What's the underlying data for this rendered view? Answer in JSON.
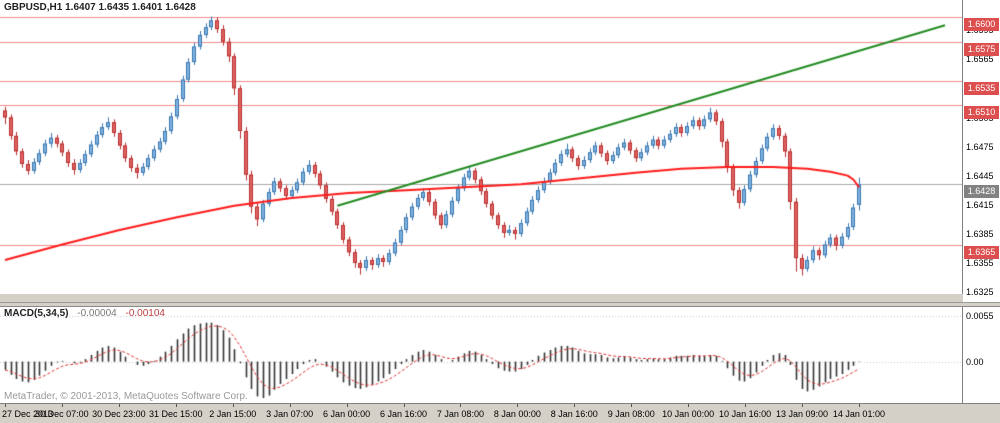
{
  "app": {
    "name": "MetaTrader terminal chart"
  },
  "header": {
    "title_line": "GBPUSD,H1  1.6407 1.6435 1.6401 1.6428"
  },
  "watermark": "MetaTrader, © 2001-2013, MetaQuotes Software Corp.",
  "colors": {
    "bull_fill": "#7fb2de",
    "bull_stroke": "#3a77b0",
    "bear_fill": "#e06262",
    "bear_stroke": "#b83030",
    "ma": "#ff1a1a",
    "trend": "#228B22",
    "hline": "#f28b8b",
    "hline_label_bg": "#dd4f4f",
    "current_line": "#aaaaaa",
    "current_label_bg": "#828282",
    "hist": "#333333",
    "signal": "#dd3333",
    "grid_dotted": "#c8c8c8"
  },
  "chart_data": [
    {
      "type": "candlestick",
      "title": "GBPUSD,H1",
      "symbol": "GBPUSD",
      "timeframe": "H1",
      "ohlc_display": {
        "open": "1.6407",
        "high": "1.6435",
        "low": "1.6401",
        "close": "1.6428"
      },
      "ylim": [
        1.6315,
        1.6618
      ],
      "y_ticks": [
        1.6595,
        1.6565,
        1.6505,
        1.6475,
        1.6445,
        1.6415,
        1.6385,
        1.6355,
        1.6325
      ],
      "hlines": [
        1.66,
        1.6575,
        1.6535,
        1.651,
        1.6365
      ],
      "current_price": 1.6428,
      "x_ticks": [
        "27 Dec 2013",
        "30 Dec 07:00",
        "30 Dec 23:00",
        "31 Dec 15:00",
        "2 Jan 15:00",
        "3 Jan 07:00",
        "6 Jan 00:00",
        "6 Jan 16:00",
        "7 Jan 08:00",
        "8 Jan 00:00",
        "8 Jan 16:00",
        "9 Jan 08:00",
        "10 Jan 00:00",
        "10 Jan 16:00",
        "13 Jan 09:00",
        "14 Jan 01:00"
      ],
      "candles": [
        [
          1.6504,
          1.6508,
          1.649,
          1.6497
        ],
        [
          1.6497,
          1.65,
          1.6474,
          1.6478
        ],
        [
          1.6478,
          1.6482,
          1.6458,
          1.6462
        ],
        [
          1.6462,
          1.6465,
          1.6445,
          1.6449
        ],
        [
          1.6449,
          1.6453,
          1.6438,
          1.6442
        ],
        [
          1.6442,
          1.6455,
          1.6439,
          1.6451
        ],
        [
          1.6451,
          1.6464,
          1.6448,
          1.646
        ],
        [
          1.646,
          1.6474,
          1.6457,
          1.647
        ],
        [
          1.647,
          1.6481,
          1.6466,
          1.6476
        ],
        [
          1.6476,
          1.6479,
          1.6466,
          1.647
        ],
        [
          1.647,
          1.6473,
          1.6457,
          1.6461
        ],
        [
          1.6461,
          1.6464,
          1.6446,
          1.645
        ],
        [
          1.645,
          1.6454,
          1.6438,
          1.6443
        ],
        [
          1.6443,
          1.6454,
          1.644,
          1.645
        ],
        [
          1.645,
          1.6463,
          1.6447,
          1.6459
        ],
        [
          1.6459,
          1.6473,
          1.6456,
          1.6469
        ],
        [
          1.6469,
          1.6483,
          1.6466,
          1.6479
        ],
        [
          1.6479,
          1.6491,
          1.6476,
          1.6487
        ],
        [
          1.6487,
          1.6497,
          1.6484,
          1.6492
        ],
        [
          1.6492,
          1.6495,
          1.6477,
          1.6481
        ],
        [
          1.6481,
          1.6484,
          1.6464,
          1.6468
        ],
        [
          1.6468,
          1.6471,
          1.6451,
          1.6455
        ],
        [
          1.6455,
          1.6458,
          1.6441,
          1.6445
        ],
        [
          1.6445,
          1.6449,
          1.6434,
          1.644
        ],
        [
          1.644,
          1.645,
          1.6437,
          1.6446
        ],
        [
          1.6446,
          1.6459,
          1.6443,
          1.6455
        ],
        [
          1.6455,
          1.6468,
          1.6452,
          1.6464
        ],
        [
          1.6464,
          1.6476,
          1.6461,
          1.6472
        ],
        [
          1.6472,
          1.6487,
          1.6469,
          1.6483
        ],
        [
          1.6483,
          1.6502,
          1.648,
          1.6498
        ],
        [
          1.6498,
          1.652,
          1.6495,
          1.6516
        ],
        [
          1.6516,
          1.654,
          1.6513,
          1.6536
        ],
        [
          1.6536,
          1.6558,
          1.6533,
          1.6554
        ],
        [
          1.6554,
          1.6574,
          1.6551,
          1.657
        ],
        [
          1.657,
          1.6586,
          1.6567,
          1.6582
        ],
        [
          1.6582,
          1.6594,
          1.6579,
          1.659
        ],
        [
          1.659,
          1.6601,
          1.6587,
          1.6597
        ],
        [
          1.6597,
          1.66,
          1.6584,
          1.6588
        ],
        [
          1.6588,
          1.6592,
          1.6571,
          1.6575
        ],
        [
          1.6575,
          1.6579,
          1.6554,
          1.656
        ],
        [
          1.656,
          1.6563,
          1.652,
          1.6527
        ],
        [
          1.6527,
          1.653,
          1.6475,
          1.6483
        ],
        [
          1.6483,
          1.6487,
          1.6432,
          1.6438
        ],
        [
          1.6438,
          1.6442,
          1.6398,
          1.6405
        ],
        [
          1.6405,
          1.6409,
          1.6385,
          1.6392
        ],
        [
          1.6392,
          1.6412,
          1.6389,
          1.6408
        ],
        [
          1.6408,
          1.6424,
          1.6405,
          1.642
        ],
        [
          1.642,
          1.6435,
          1.6417,
          1.6431
        ],
        [
          1.6431,
          1.6434,
          1.642,
          1.6424
        ],
        [
          1.6424,
          1.6427,
          1.6412,
          1.6416
        ],
        [
          1.6416,
          1.6426,
          1.6413,
          1.6422
        ],
        [
          1.6422,
          1.6434,
          1.6419,
          1.643
        ],
        [
          1.643,
          1.6445,
          1.6427,
          1.6441
        ],
        [
          1.6441,
          1.6453,
          1.6438,
          1.6448
        ],
        [
          1.6448,
          1.6451,
          1.6435,
          1.6439
        ],
        [
          1.6439,
          1.6442,
          1.6423,
          1.6427
        ],
        [
          1.6427,
          1.643,
          1.6409,
          1.6413
        ],
        [
          1.6413,
          1.6416,
          1.6396,
          1.64
        ],
        [
          1.64,
          1.6403,
          1.6382,
          1.6386
        ],
        [
          1.6386,
          1.6389,
          1.6367,
          1.6371
        ],
        [
          1.6371,
          1.6374,
          1.6354,
          1.6358
        ],
        [
          1.6358,
          1.6361,
          1.6342,
          1.6347
        ],
        [
          1.6347,
          1.635,
          1.6335,
          1.6342
        ],
        [
          1.6342,
          1.6354,
          1.6339,
          1.635
        ],
        [
          1.635,
          1.6353,
          1.634,
          1.6345
        ],
        [
          1.6345,
          1.6356,
          1.6342,
          1.6352
        ],
        [
          1.6352,
          1.6355,
          1.6343,
          1.6348
        ],
        [
          1.6348,
          1.6361,
          1.6345,
          1.6357
        ],
        [
          1.6357,
          1.6372,
          1.6354,
          1.6368
        ],
        [
          1.6368,
          1.6385,
          1.6365,
          1.6381
        ],
        [
          1.6381,
          1.6398,
          1.6378,
          1.6394
        ],
        [
          1.6394,
          1.6409,
          1.6391,
          1.6405
        ],
        [
          1.6405,
          1.6418,
          1.6402,
          1.6414
        ],
        [
          1.6414,
          1.6424,
          1.6411,
          1.642
        ],
        [
          1.642,
          1.6423,
          1.6406,
          1.641
        ],
        [
          1.641,
          1.6413,
          1.6392,
          1.6396
        ],
        [
          1.6396,
          1.6399,
          1.6382,
          1.6386
        ],
        [
          1.6386,
          1.6401,
          1.6383,
          1.6397
        ],
        [
          1.6397,
          1.6415,
          1.6394,
          1.6411
        ],
        [
          1.6411,
          1.6428,
          1.6408,
          1.6424
        ],
        [
          1.6424,
          1.6439,
          1.6421,
          1.6435
        ],
        [
          1.6435,
          1.6447,
          1.6432,
          1.6442
        ],
        [
          1.6442,
          1.6445,
          1.6429,
          1.6433
        ],
        [
          1.6433,
          1.6436,
          1.6417,
          1.6421
        ],
        [
          1.6421,
          1.6424,
          1.6404,
          1.6408
        ],
        [
          1.6408,
          1.6411,
          1.6392,
          1.6396
        ],
        [
          1.6396,
          1.6399,
          1.6382,
          1.6386
        ],
        [
          1.6386,
          1.6389,
          1.6373,
          1.6378
        ],
        [
          1.6378,
          1.6386,
          1.6375,
          1.6381
        ],
        [
          1.6381,
          1.6384,
          1.6371,
          1.6377
        ],
        [
          1.6377,
          1.6392,
          1.6374,
          1.6388
        ],
        [
          1.6388,
          1.6404,
          1.6385,
          1.64
        ],
        [
          1.64,
          1.6416,
          1.6397,
          1.6412
        ],
        [
          1.6412,
          1.6426,
          1.6409,
          1.6422
        ],
        [
          1.6422,
          1.6435,
          1.6419,
          1.6431
        ],
        [
          1.6431,
          1.6444,
          1.6428,
          1.644
        ],
        [
          1.644,
          1.6454,
          1.6437,
          1.645
        ],
        [
          1.645,
          1.6463,
          1.6447,
          1.6459
        ],
        [
          1.6459,
          1.647,
          1.6456,
          1.6464
        ],
        [
          1.6464,
          1.6467,
          1.6451,
          1.6455
        ],
        [
          1.6455,
          1.6458,
          1.6443,
          1.6447
        ],
        [
          1.6447,
          1.6457,
          1.6444,
          1.6453
        ],
        [
          1.6453,
          1.6465,
          1.645,
          1.6461
        ],
        [
          1.6461,
          1.6472,
          1.6458,
          1.6468
        ],
        [
          1.6468,
          1.6471,
          1.6456,
          1.646
        ],
        [
          1.646,
          1.6463,
          1.6448,
          1.6452
        ],
        [
          1.6452,
          1.6462,
          1.6449,
          1.6458
        ],
        [
          1.6458,
          1.647,
          1.6455,
          1.6466
        ],
        [
          1.6466,
          1.6475,
          1.6463,
          1.6471
        ],
        [
          1.6471,
          1.6474,
          1.6459,
          1.6463
        ],
        [
          1.6463,
          1.6466,
          1.6451,
          1.6455
        ],
        [
          1.6455,
          1.6465,
          1.6452,
          1.6461
        ],
        [
          1.6461,
          1.6472,
          1.6458,
          1.6468
        ],
        [
          1.6468,
          1.6478,
          1.6465,
          1.6474
        ],
        [
          1.6474,
          1.6477,
          1.6464,
          1.6468
        ],
        [
          1.6468,
          1.6478,
          1.6465,
          1.6474
        ],
        [
          1.6474,
          1.6484,
          1.6471,
          1.648
        ],
        [
          1.648,
          1.6491,
          1.6477,
          1.6487
        ],
        [
          1.6487,
          1.649,
          1.6477,
          1.6481
        ],
        [
          1.6481,
          1.6492,
          1.6478,
          1.6488
        ],
        [
          1.6488,
          1.6498,
          1.6485,
          1.6494
        ],
        [
          1.6494,
          1.6497,
          1.6484,
          1.6488
        ],
        [
          1.6488,
          1.6499,
          1.6485,
          1.6495
        ],
        [
          1.6495,
          1.6507,
          1.6492,
          1.6502
        ],
        [
          1.6502,
          1.6505,
          1.6489,
          1.6493
        ],
        [
          1.6493,
          1.6496,
          1.6466,
          1.6472
        ],
        [
          1.6472,
          1.6475,
          1.644,
          1.6446
        ],
        [
          1.6446,
          1.6449,
          1.6416,
          1.6422
        ],
        [
          1.6422,
          1.6425,
          1.6403,
          1.6409
        ],
        [
          1.6409,
          1.6427,
          1.6406,
          1.6423
        ],
        [
          1.6423,
          1.6442,
          1.642,
          1.6438
        ],
        [
          1.6438,
          1.6456,
          1.6435,
          1.6452
        ],
        [
          1.6452,
          1.6469,
          1.6449,
          1.6465
        ],
        [
          1.6465,
          1.6481,
          1.6462,
          1.6477
        ],
        [
          1.6477,
          1.649,
          1.6474,
          1.6486
        ],
        [
          1.6486,
          1.6489,
          1.6474,
          1.6478
        ],
        [
          1.6478,
          1.6481,
          1.6456,
          1.6462
        ],
        [
          1.6462,
          1.6465,
          1.6402,
          1.641
        ],
        [
          1.641,
          1.6414,
          1.6338,
          1.6352
        ],
        [
          1.6352,
          1.6356,
          1.6334,
          1.6341
        ],
        [
          1.6341,
          1.6354,
          1.6338,
          1.635
        ],
        [
          1.635,
          1.6364,
          1.6347,
          1.636
        ],
        [
          1.636,
          1.6363,
          1.635,
          1.6355
        ],
        [
          1.6355,
          1.637,
          1.6352,
          1.6366
        ],
        [
          1.6366,
          1.6377,
          1.6363,
          1.6373
        ],
        [
          1.6373,
          1.6376,
          1.636,
          1.6365
        ],
        [
          1.6365,
          1.6378,
          1.6362,
          1.6374
        ],
        [
          1.6374,
          1.6388,
          1.6371,
          1.6384
        ],
        [
          1.6384,
          1.6408,
          1.6381,
          1.6404
        ],
        [
          1.6407,
          1.6435,
          1.6401,
          1.6428
        ]
      ],
      "ma_red_points": [
        [
          0,
          1.635
        ],
        [
          10,
          1.6366
        ],
        [
          20,
          1.6381
        ],
        [
          30,
          1.6394
        ],
        [
          40,
          1.6406
        ],
        [
          50,
          1.6414
        ],
        [
          60,
          1.6419
        ],
        [
          70,
          1.6422
        ],
        [
          80,
          1.6425
        ],
        [
          90,
          1.6428
        ],
        [
          100,
          1.6434
        ],
        [
          110,
          1.644
        ],
        [
          118,
          1.6444
        ],
        [
          126,
          1.6446
        ],
        [
          134,
          1.6446
        ],
        [
          140,
          1.6444
        ],
        [
          144,
          1.6441
        ],
        [
          147,
          1.6437
        ],
        [
          148,
          1.6433
        ],
        [
          149,
          1.6425
        ]
      ],
      "trendline_green": {
        "x1_slot": 58,
        "price1": 1.6406,
        "x2_slot": 164,
        "price2": 1.6592
      }
    },
    {
      "type": "bar",
      "name": "MACD(5,34,5)",
      "value_labels": [
        "-0.00004",
        "-0.00104"
      ],
      "ylim": [
        -0.005,
        0.0066
      ],
      "y_ticks": [
        {
          "value": 0.0055,
          "label": "0.0055"
        },
        {
          "value": 0,
          "label": "0.00"
        }
      ],
      "values": [
        -0.001,
        -0.0016,
        -0.0021,
        -0.0024,
        -0.0025,
        -0.0022,
        -0.0017,
        -0.0011,
        -0.0005,
        -0.0001,
        0.0001,
        0.0,
        -0.0002,
        -0.0001,
        0.0003,
        0.0008,
        0.0013,
        0.0017,
        0.0019,
        0.0017,
        0.0012,
        0.0006,
        0.0,
        -0.0004,
        -0.0005,
        -0.0003,
        0.0001,
        0.0006,
        0.0012,
        0.0019,
        0.0027,
        0.0034,
        0.004,
        0.0044,
        0.0046,
        0.0047,
        0.0047,
        0.0044,
        0.0038,
        0.0029,
        0.0015,
        -0.0002,
        -0.0019,
        -0.0033,
        -0.0042,
        -0.0044,
        -0.0041,
        -0.0034,
        -0.0027,
        -0.0021,
        -0.0015,
        -0.0009,
        -0.0003,
        0.0002,
        0.0003,
        0.0,
        -0.0006,
        -0.0012,
        -0.0019,
        -0.0025,
        -0.0029,
        -0.0032,
        -0.0033,
        -0.0031,
        -0.0028,
        -0.0024,
        -0.002,
        -0.0015,
        -0.0009,
        -0.0003,
        0.0003,
        0.0008,
        0.0012,
        0.0014,
        0.0012,
        0.0008,
        0.0003,
        0.0,
        0.0002,
        0.0006,
        0.001,
        0.0013,
        0.0012,
        0.0008,
        0.0003,
        -0.0003,
        -0.0008,
        -0.0011,
        -0.0012,
        -0.0012,
        -0.0009,
        -0.0004,
        0.0002,
        0.0007,
        0.0011,
        0.0014,
        0.0017,
        0.0019,
        0.0019,
        0.0017,
        0.0013,
        0.001,
        0.0009,
        0.0009,
        0.0008,
        0.0005,
        0.0004,
        0.0005,
        0.0006,
        0.0005,
        0.0003,
        0.0002,
        0.0003,
        0.0004,
        0.0003,
        0.0003,
        0.0005,
        0.0007,
        0.0007,
        0.0007,
        0.0008,
        0.0007,
        0.0007,
        0.0008,
        0.0007,
        0.0001,
        -0.0008,
        -0.0017,
        -0.0023,
        -0.0024,
        -0.002,
        -0.0013,
        -0.0005,
        0.0002,
        0.0008,
        0.001,
        0.0008,
        -0.0004,
        -0.0022,
        -0.0033,
        -0.0036,
        -0.0034,
        -0.003,
        -0.0025,
        -0.0021,
        -0.0018,
        -0.0015,
        -0.001,
        -0.0005,
        -4e-05
      ]
    }
  ]
}
